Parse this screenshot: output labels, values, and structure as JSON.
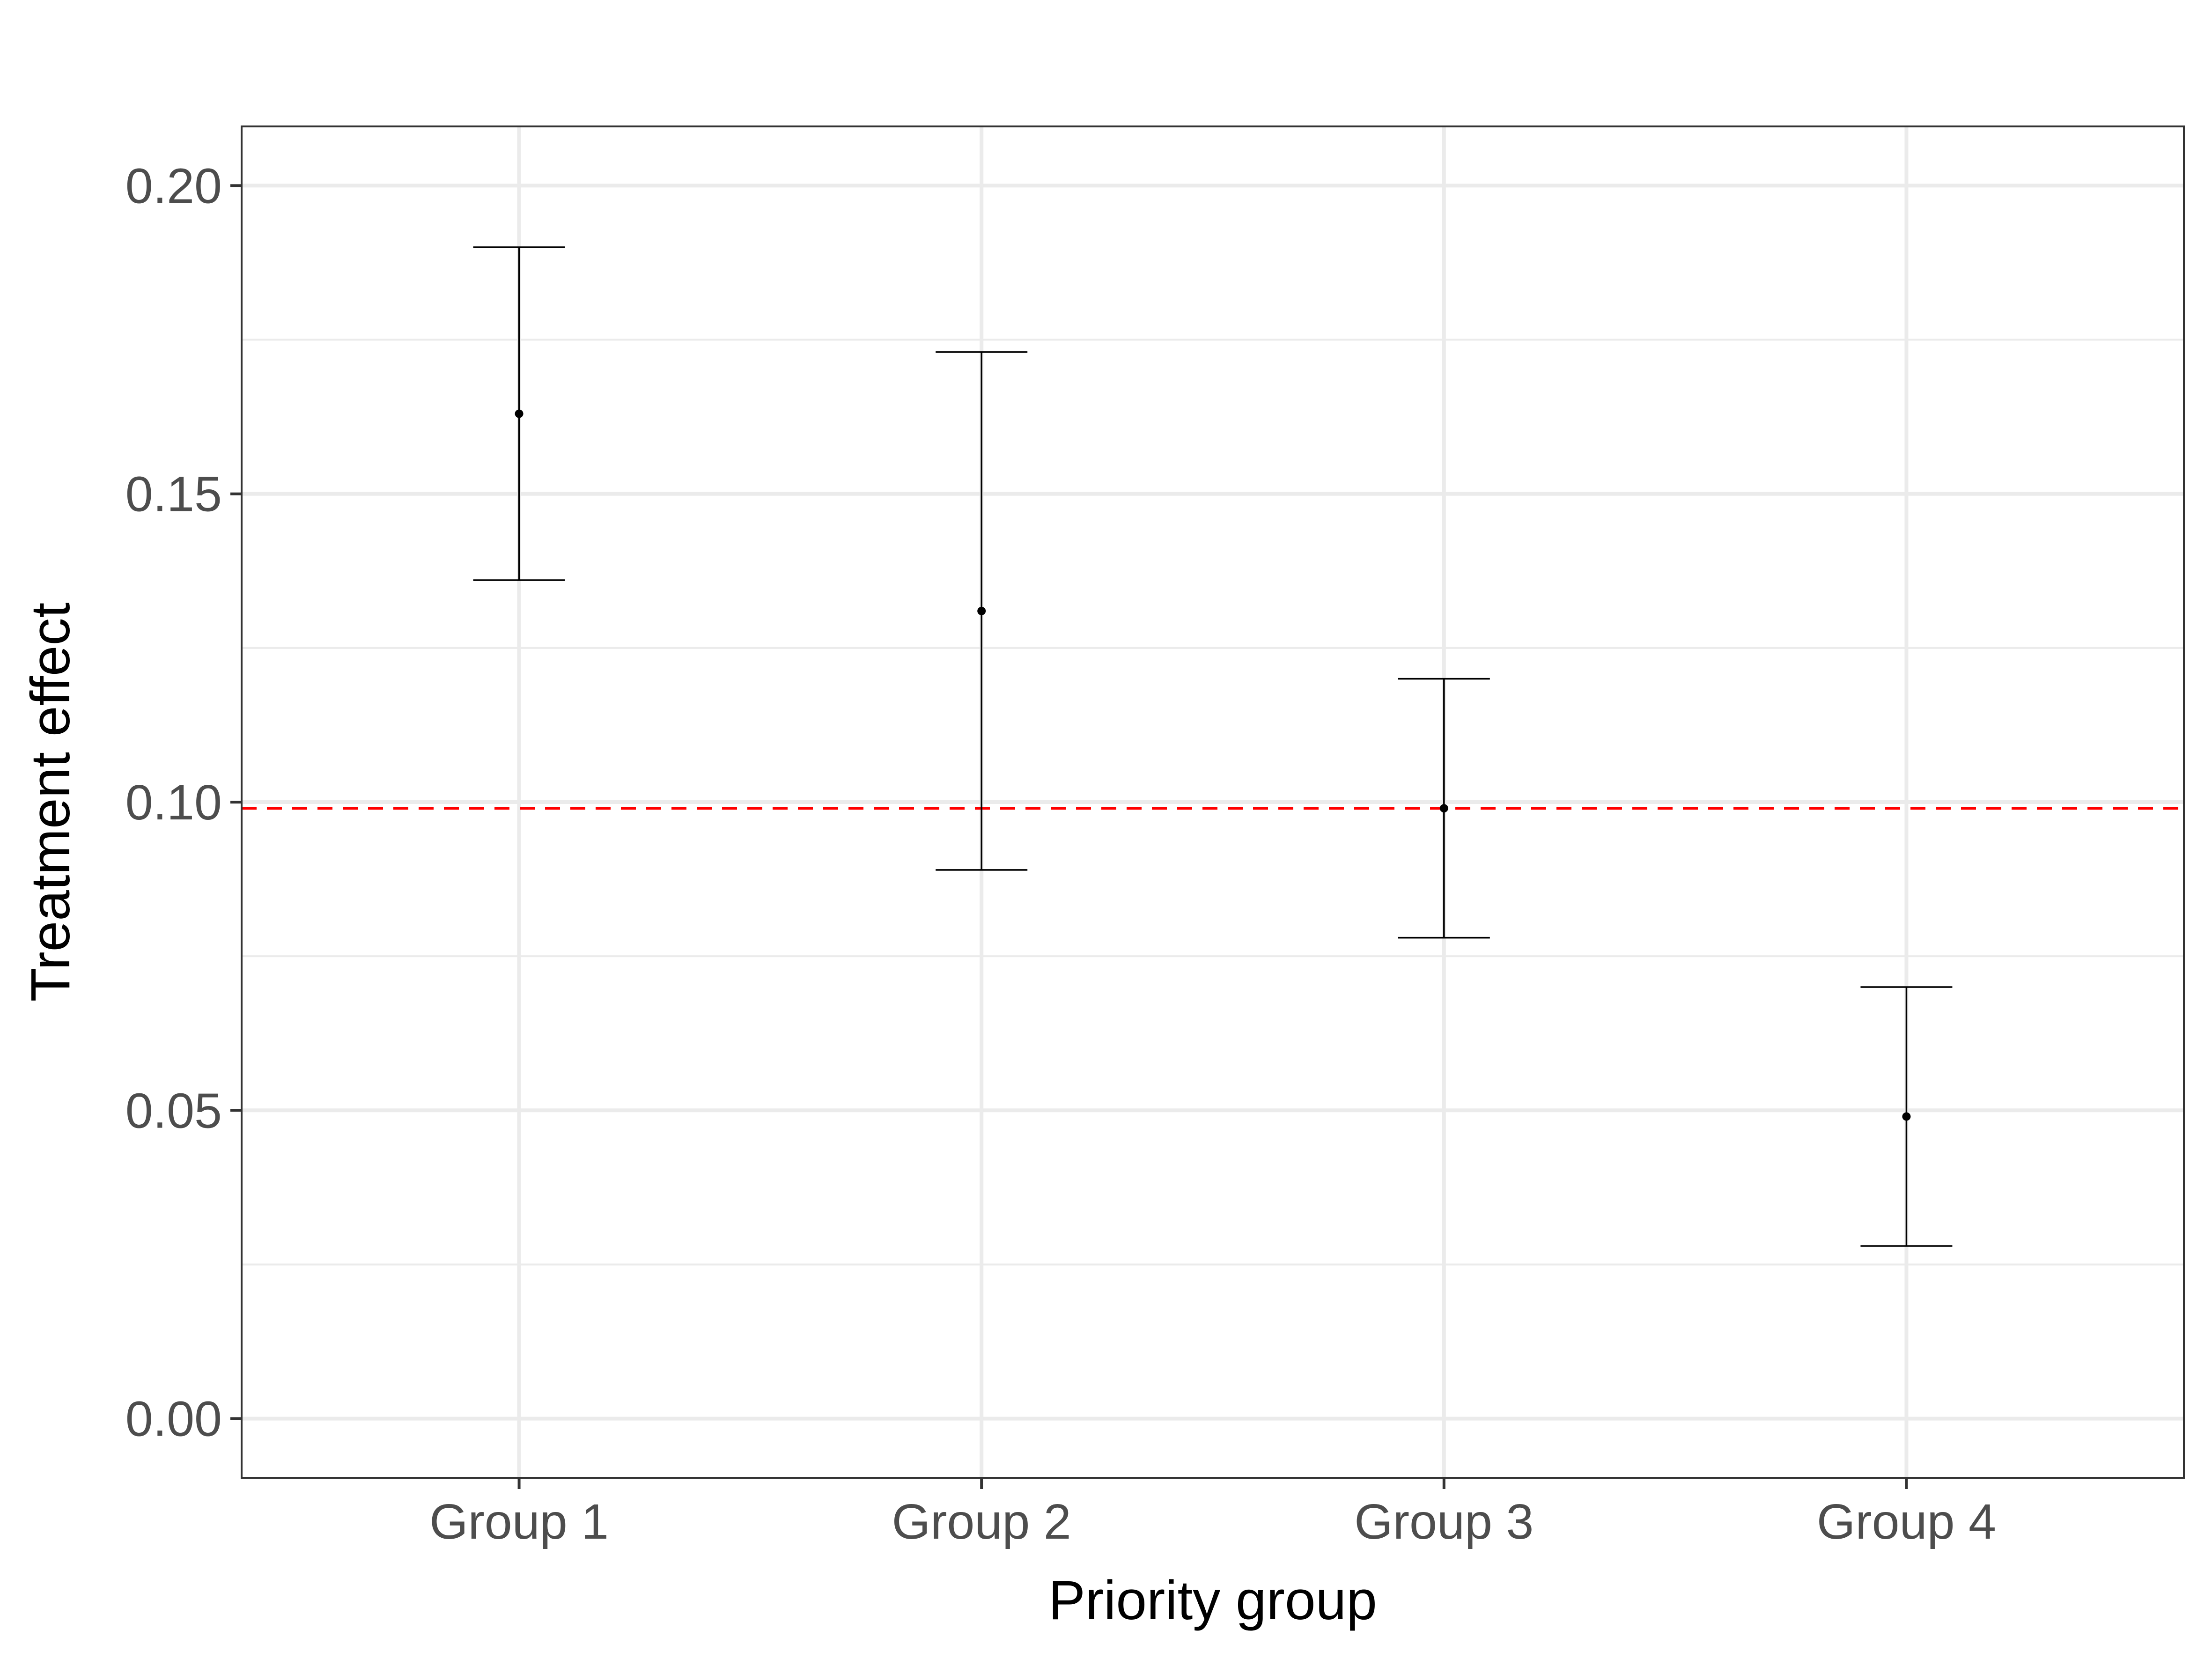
{
  "chart_data": {
    "type": "errorbar",
    "xlabel": "Priority group",
    "ylabel": "Treatment effect",
    "categories": [
      "Group 1",
      "Group 2",
      "Group 3",
      "Group 4"
    ],
    "points": [
      {
        "category": "Group 1",
        "estimate": 0.163,
        "lower": 0.136,
        "upper": 0.19
      },
      {
        "category": "Group 2",
        "estimate": 0.131,
        "lower": 0.089,
        "upper": 0.173
      },
      {
        "category": "Group 3",
        "estimate": 0.099,
        "lower": 0.078,
        "upper": 0.12
      },
      {
        "category": "Group 4",
        "estimate": 0.049,
        "lower": 0.028,
        "upper": 0.07
      }
    ],
    "reference_line": {
      "y": 0.099,
      "style": "dashed",
      "color": "#ff0000"
    },
    "ylim": [
      -0.0096,
      0.2096
    ],
    "yticks": [
      0.0,
      0.05,
      0.1,
      0.15,
      0.2
    ],
    "ytick_labels": [
      "0.00",
      "0.05",
      "0.10",
      "0.15",
      "0.20"
    ],
    "grid": true,
    "theme": "bw",
    "colors": {
      "points": "#000000",
      "reference": "#ff0000",
      "grid": "#ebebeb",
      "panel_border": "#333333",
      "tick_text": "#4d4d4d"
    }
  }
}
